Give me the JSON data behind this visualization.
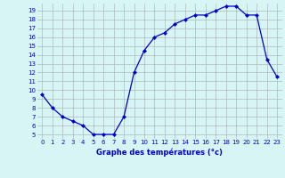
{
  "hours": [
    0,
    1,
    2,
    3,
    4,
    5,
    6,
    7,
    8,
    9,
    10,
    11,
    12,
    13,
    14,
    15,
    16,
    17,
    18,
    19,
    20,
    21,
    22,
    23
  ],
  "temperatures": [
    9.5,
    8.0,
    7.0,
    6.5,
    6.0,
    5.0,
    5.0,
    5.0,
    7.0,
    12.0,
    14.5,
    16.0,
    16.5,
    17.5,
    18.0,
    18.5,
    18.5,
    19.0,
    19.5,
    19.5,
    18.5,
    18.5,
    13.5,
    11.5
  ],
  "line_color": "#0000cc",
  "marker": "D",
  "marker_size": 2.0,
  "bg_color": "#d8f5f5",
  "grid_color": "#aaaaaa",
  "xlabel": "Graphe des températures (°c)",
  "xlabel_color": "#0000cc",
  "tick_color": "#0000cc",
  "ylim": [
    4.5,
    19.8
  ],
  "xlim": [
    -0.5,
    23.5
  ],
  "yticks": [
    5,
    6,
    7,
    8,
    9,
    10,
    11,
    12,
    13,
    14,
    15,
    16,
    17,
    18,
    19
  ],
  "xticks": [
    0,
    1,
    2,
    3,
    4,
    5,
    6,
    7,
    8,
    9,
    10,
    11,
    12,
    13,
    14,
    15,
    16,
    17,
    18,
    19,
    20,
    21,
    22,
    23
  ]
}
